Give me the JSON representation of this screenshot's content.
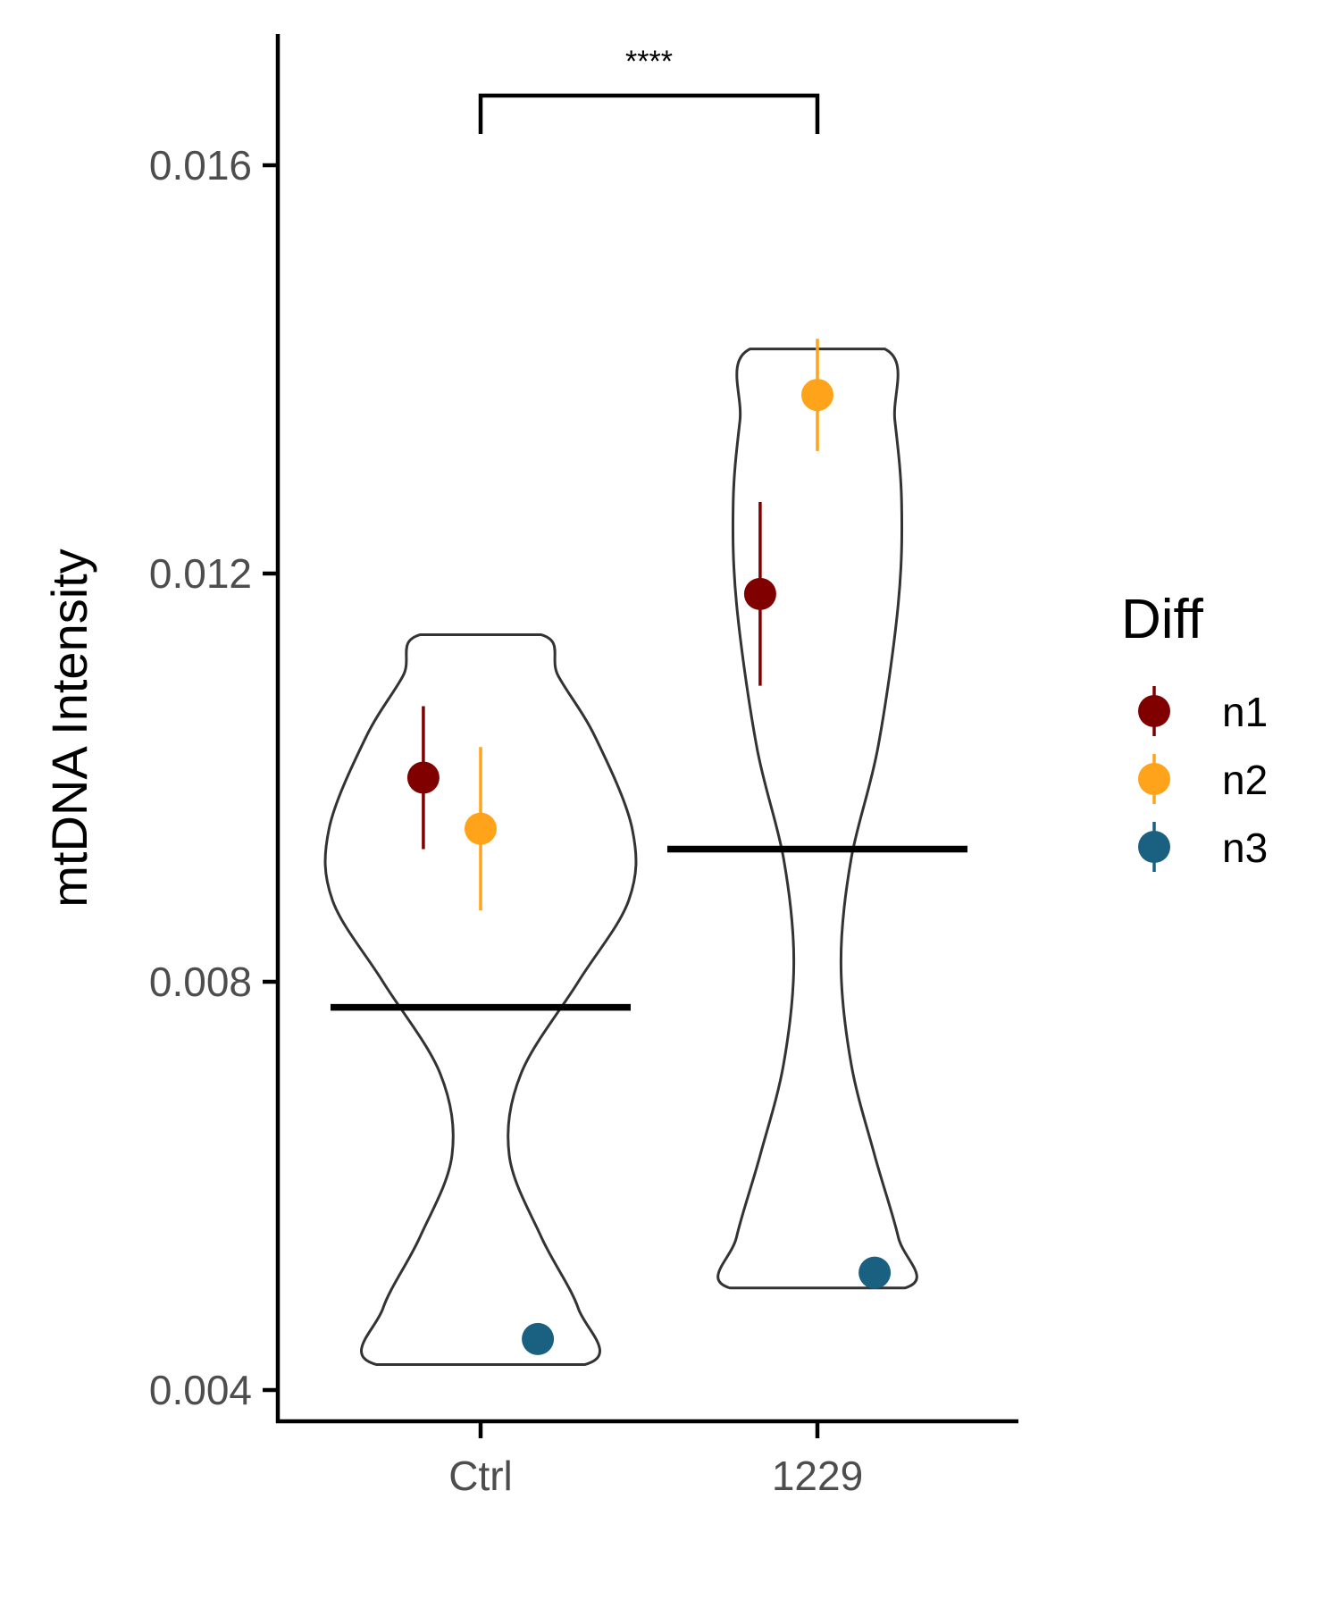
{
  "chart_data": {
    "type": "violin",
    "ylabel": "mtDNA Intensity",
    "xlabel": "",
    "categories": [
      "Ctrl",
      "1229"
    ],
    "ylim": [
      0.0036,
      0.0178
    ],
    "yticks": [
      0.004,
      0.008,
      0.012,
      0.016
    ],
    "ytick_labels": [
      "0.004",
      "0.008",
      "0.012",
      "0.016"
    ],
    "violins": [
      {
        "category": "Ctrl",
        "min": 0.00425,
        "max": 0.0114,
        "profile": [
          {
            "y": 0.00425,
            "w": 0.31
          },
          {
            "y": 0.0048,
            "w": 0.29
          },
          {
            "y": 0.0055,
            "w": 0.18
          },
          {
            "y": 0.0063,
            "w": 0.085
          },
          {
            "y": 0.0071,
            "w": 0.12
          },
          {
            "y": 0.008,
            "w": 0.29
          },
          {
            "y": 0.0088,
            "w": 0.44
          },
          {
            "y": 0.0095,
            "w": 0.45
          },
          {
            "y": 0.0104,
            "w": 0.34
          },
          {
            "y": 0.011,
            "w": 0.23
          },
          {
            "y": 0.0114,
            "w": 0.18
          }
        ],
        "mean": 0.00775
      },
      {
        "category": "1229",
        "min": 0.005,
        "max": 0.0142,
        "profile": [
          {
            "y": 0.005,
            "w": 0.26
          },
          {
            "y": 0.0055,
            "w": 0.24
          },
          {
            "y": 0.0063,
            "w": 0.17
          },
          {
            "y": 0.0072,
            "w": 0.1
          },
          {
            "y": 0.0082,
            "w": 0.07
          },
          {
            "y": 0.0092,
            "w": 0.1
          },
          {
            "y": 0.0103,
            "w": 0.18
          },
          {
            "y": 0.0117,
            "w": 0.24
          },
          {
            "y": 0.0127,
            "w": 0.25
          },
          {
            "y": 0.0135,
            "w": 0.23
          },
          {
            "y": 0.0142,
            "w": 0.2
          }
        ],
        "mean": 0.0093
      }
    ],
    "series": [
      {
        "name": "n1",
        "color": "#800000",
        "points": [
          {
            "category": "Ctrl",
            "offset": -0.17,
            "y": 0.01,
            "lo": 0.0093,
            "hi": 0.0107
          },
          {
            "category": "1229",
            "offset": -0.17,
            "y": 0.0118,
            "lo": 0.0109,
            "hi": 0.0127
          }
        ]
      },
      {
        "name": "n2",
        "color": "#FFA31A",
        "points": [
          {
            "category": "Ctrl",
            "offset": 0.0,
            "y": 0.0095,
            "lo": 0.0087,
            "hi": 0.0103
          },
          {
            "category": "1229",
            "offset": 0.0,
            "y": 0.01375,
            "lo": 0.0132,
            "hi": 0.0143
          }
        ]
      },
      {
        "name": "n3",
        "color": "#1A6080",
        "points": [
          {
            "category": "Ctrl",
            "offset": 0.17,
            "y": 0.0045,
            "lo": 0.0045,
            "hi": 0.0045
          },
          {
            "category": "1229",
            "offset": 0.17,
            "y": 0.00515,
            "lo": 0.00515,
            "hi": 0.00515
          }
        ]
      }
    ],
    "significance": {
      "from": "Ctrl",
      "to": "1229",
      "label": "****",
      "y": 0.0172
    },
    "legend": {
      "title": "Diff",
      "position": "right"
    },
    "grid": false
  }
}
